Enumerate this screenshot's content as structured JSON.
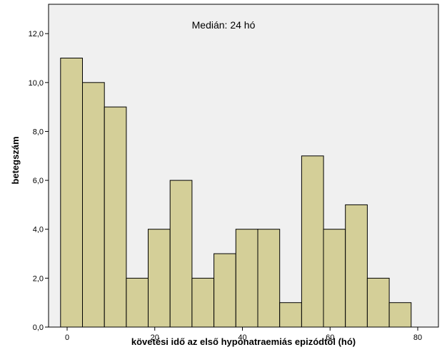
{
  "chart_data": {
    "type": "bar",
    "subtype": "histogram",
    "title": "",
    "annotation": "Medián: 24 hó",
    "xlabel": "követési idő az első hyponatraemiás epizódtól (hó)",
    "ylabel": "betegszám",
    "xlim": [
      -5,
      82
    ],
    "ylim": [
      0,
      13.2
    ],
    "x_ticks": [
      0,
      20,
      40,
      60,
      80
    ],
    "x_tick_labels": [
      "0",
      "20",
      "40",
      "60",
      "80"
    ],
    "y_ticks": [
      0,
      2,
      4,
      6,
      8,
      10,
      12
    ],
    "y_tick_labels": [
      "0,0",
      "2,0",
      "4,0",
      "6,0",
      "8,0",
      "10,0",
      "12,0"
    ],
    "bin_edges": [
      -1.5,
      3.5,
      8.5,
      13.5,
      18.5,
      23.5,
      28.5,
      33.5,
      38.5,
      43.5,
      48.5,
      53.5,
      58.5,
      63.5,
      68.5,
      73.5,
      78.5
    ],
    "values": [
      11,
      10,
      9,
      2,
      4,
      6,
      2,
      3,
      4,
      4,
      1,
      7,
      4,
      5,
      2,
      1
    ],
    "bar_color": "#d4cf98",
    "bar_edge_color": "#000000",
    "background_color": "#f0f0f0",
    "grid": false,
    "legend": "none"
  }
}
